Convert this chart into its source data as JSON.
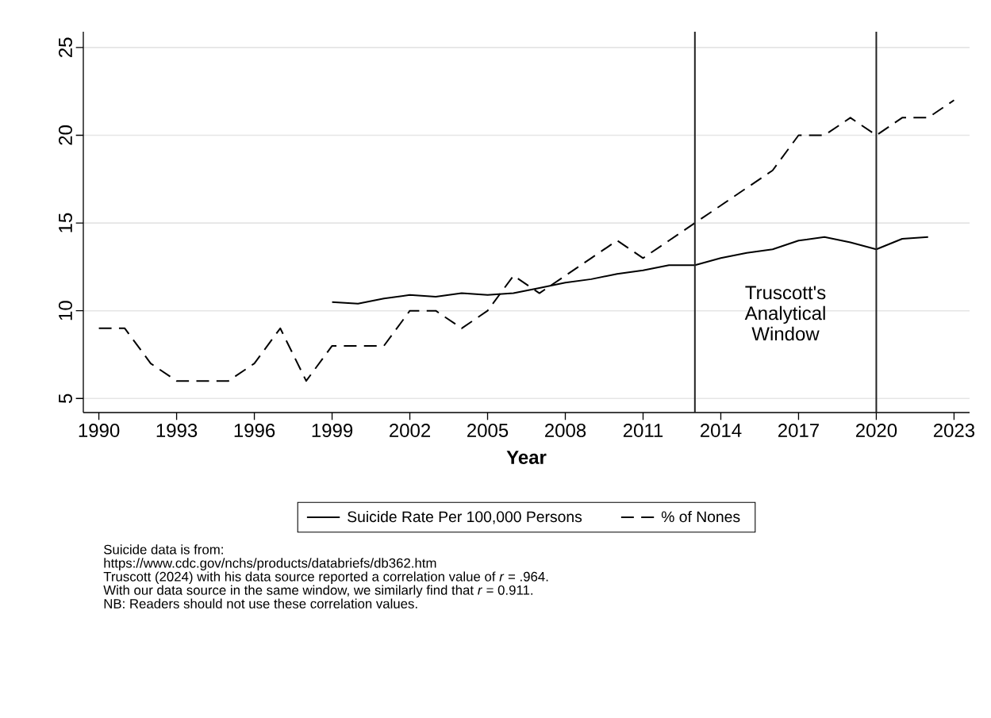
{
  "chart_data": {
    "type": "line",
    "xlabel": "Year",
    "x": [
      1990,
      1991,
      1992,
      1993,
      1994,
      1995,
      1996,
      1997,
      1998,
      1999,
      2000,
      2001,
      2002,
      2003,
      2004,
      2005,
      2006,
      2007,
      2008,
      2009,
      2010,
      2011,
      2012,
      2013,
      2014,
      2015,
      2016,
      2017,
      2018,
      2019,
      2020,
      2021,
      2022,
      2023
    ],
    "series": [
      {
        "name": "Suicide Rate Per 100,000 Persons",
        "color": "#000000",
        "line_style": "solid",
        "x": [
          1999,
          2000,
          2001,
          2002,
          2003,
          2004,
          2005,
          2006,
          2007,
          2008,
          2009,
          2010,
          2011,
          2012,
          2013,
          2014,
          2015,
          2016,
          2017,
          2018,
          2019,
          2020,
          2021,
          2022
        ],
        "values": [
          10.5,
          10.4,
          10.7,
          10.9,
          10.8,
          11.0,
          10.9,
          11.0,
          11.3,
          11.6,
          11.8,
          12.1,
          12.3,
          12.6,
          12.6,
          13.0,
          13.3,
          13.5,
          14.0,
          14.2,
          13.9,
          13.5,
          14.1,
          14.2
        ]
      },
      {
        "name": "% of Nones",
        "color": "#000000",
        "line_style": "dashed",
        "values": [
          9,
          9,
          7,
          6,
          6,
          6,
          7,
          9,
          6,
          8,
          8,
          8,
          10,
          10,
          9,
          10,
          12,
          11,
          12,
          13,
          14,
          13,
          14,
          15,
          16,
          17,
          18,
          20,
          20,
          21,
          20,
          21,
          21,
          22
        ]
      }
    ],
    "xlim": [
      1989.4,
      2023.6
    ],
    "xticks": [
      1990,
      1993,
      1996,
      1999,
      2002,
      2005,
      2008,
      2011,
      2014,
      2017,
      2020,
      2023
    ],
    "ylim": [
      4.2,
      25.9
    ],
    "yticks": [
      5,
      10,
      15,
      20,
      25
    ],
    "grid": "y",
    "legend": "bottom",
    "ref_lines": [
      {
        "axis": "x",
        "value": 2013,
        "color": "#222222"
      },
      {
        "axis": "x",
        "value": 2020,
        "color": "#222222"
      }
    ],
    "annotations": [
      "Truscott's Analytical Window",
      "Suicide data is from:",
      "https://www.cdc.gov/nchs/products/databriefs/db362.htm",
      "Truscott (2024) with his data source reported a correlation value of *r* = .964.",
      "With our data source in the same window, we similarly find that *r* = 0.911.",
      "NB: Readers should not use these correlation values."
    ]
  }
}
